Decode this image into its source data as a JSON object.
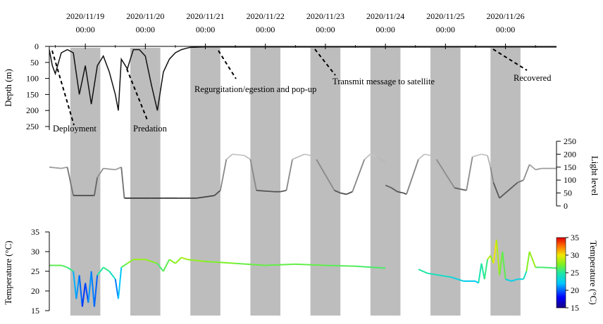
{
  "chart_data": [
    {
      "type": "line",
      "panel": "depth",
      "ylabel": "Depth (m)",
      "ylim": [
        0,
        250
      ],
      "y_ticks": [
        0,
        50,
        100,
        150,
        200,
        250
      ],
      "y_inverted": true,
      "x_ticks": [
        {
          "date": "2020/11/19",
          "time": "00:00"
        },
        {
          "date": "2020/11/20",
          "time": "00:00"
        },
        {
          "date": "2020/11/21",
          "time": "00:00"
        },
        {
          "date": "2020/11/22",
          "time": "00:00"
        },
        {
          "date": "2020/11/23",
          "time": "00:00"
        },
        {
          "date": "2020/11/24",
          "time": "00:00"
        },
        {
          "date": "2020/11/25",
          "time": "00:00"
        },
        {
          "date": "2020/11/26",
          "time": "00:00"
        }
      ],
      "x_range_days": [
        18.4,
        26.85
      ],
      "night_shading_days": [
        [
          18.75,
          19.25
        ],
        [
          19.75,
          20.25
        ],
        [
          20.75,
          21.25
        ],
        [
          21.75,
          22.25
        ],
        [
          22.75,
          23.25
        ],
        [
          23.75,
          24.25
        ],
        [
          24.75,
          25.25
        ],
        [
          25.75,
          26.25
        ]
      ],
      "series": [
        {
          "x_days": [
            18.4,
            18.45,
            18.5,
            18.6,
            18.7,
            18.8,
            18.9,
            19.0,
            19.1,
            19.2,
            19.3,
            19.4,
            19.5,
            19.55,
            19.6,
            19.7,
            19.8,
            19.9,
            20.0,
            20.1,
            20.2,
            20.3,
            20.4,
            20.5,
            20.6,
            20.7,
            20.75,
            21.0,
            22.0,
            23.0,
            24.0,
            25.0,
            26.0,
            26.85
          ],
          "values": [
            10,
            60,
            85,
            20,
            10,
            20,
            150,
            60,
            180,
            60,
            30,
            80,
            150,
            200,
            40,
            70,
            10,
            10,
            30,
            120,
            200,
            80,
            40,
            20,
            10,
            5,
            3,
            2,
            2,
            2,
            2,
            2,
            2,
            2
          ]
        }
      ],
      "annotations": [
        "Deployment",
        "Predation",
        "Regurgitation/egestion and pop-up",
        "Transmit message to satellite",
        "Recovered"
      ]
    },
    {
      "type": "line",
      "panel": "light",
      "ylabel": "Light level",
      "ylim": [
        0,
        250
      ],
      "y_ticks": [
        0,
        50,
        100,
        150,
        200,
        250
      ],
      "series": [
        {
          "x_days": [
            18.4,
            18.6,
            18.7,
            18.8,
            19.15,
            19.2,
            19.3,
            19.5,
            19.6,
            19.65,
            20.1,
            20.3,
            20.55,
            20.7,
            20.75,
            20.85,
            21.15,
            21.25,
            21.35,
            21.45,
            21.65,
            21.75,
            21.85,
            22.15,
            22.25,
            22.35,
            22.45,
            22.65,
            22.75,
            22.85,
            23.15,
            23.25,
            23.35,
            23.45,
            23.65,
            23.75,
            23.85,
            24.0
          ],
          "values": [
            150,
            145,
            150,
            40,
            40,
            110,
            145,
            140,
            150,
            30,
            30,
            30,
            30,
            30,
            30,
            30,
            40,
            60,
            180,
            200,
            195,
            180,
            60,
            55,
            55,
            60,
            180,
            200,
            195,
            180,
            60,
            50,
            45,
            55,
            180,
            200,
            190,
            170
          ]
        },
        {
          "x_days": [
            24.0,
            24.1,
            24.2,
            24.3,
            24.35,
            24.55,
            24.65,
            24.75,
            24.85,
            25.15,
            25.25,
            25.35,
            25.45,
            25.6,
            25.7,
            25.75,
            25.8,
            25.9,
            26.2,
            26.3,
            26.4,
            26.5,
            26.6,
            26.85
          ],
          "values": [
            80,
            70,
            55,
            50,
            45,
            180,
            200,
            195,
            180,
            70,
            65,
            60,
            190,
            200,
            195,
            150,
            90,
            30,
            90,
            100,
            160,
            140,
            145,
            145
          ]
        }
      ]
    },
    {
      "type": "line",
      "panel": "temperature",
      "ylabel": "Temperature (°C)",
      "ylim": [
        15,
        35
      ],
      "y_ticks": [
        15,
        20,
        25,
        30,
        35
      ],
      "colorbar": {
        "label": "Temperature (°C)",
        "range": [
          15,
          35
        ],
        "ticks": [
          15,
          20,
          25,
          30,
          35
        ]
      },
      "series": [
        {
          "x_days": [
            18.4,
            18.6,
            18.7,
            18.8,
            18.85,
            18.9,
            18.95,
            19.0,
            19.05,
            19.1,
            19.15,
            19.2,
            19.3,
            19.4,
            19.5,
            19.55,
            19.6,
            19.7,
            19.8,
            19.9,
            20.0,
            20.1,
            20.2,
            20.3,
            20.4,
            20.5,
            20.6,
            20.7,
            21.0,
            21.5,
            22.0,
            22.5,
            23.0,
            23.5,
            24.0
          ],
          "values": [
            26.5,
            26.5,
            26,
            25,
            18,
            24,
            16,
            22,
            17,
            25,
            16,
            24,
            26,
            25,
            23,
            18,
            26,
            27,
            28,
            28,
            28,
            27.5,
            27,
            25,
            28,
            27,
            28.5,
            28,
            27.5,
            27,
            26.5,
            26.8,
            26.5,
            26.3,
            25.8
          ]
        },
        {
          "x_days": [
            24.55,
            24.7,
            24.9,
            25.1,
            25.3,
            25.5,
            25.55,
            25.6,
            25.65,
            25.7,
            25.75,
            25.8,
            25.85,
            25.9,
            25.95,
            26.0,
            26.1,
            26.2,
            26.3,
            26.35,
            26.4,
            26.5,
            26.6,
            26.85
          ],
          "values": [
            25.5,
            24.5,
            24,
            23.5,
            22.5,
            22.5,
            22,
            27,
            23,
            28,
            29,
            27,
            33,
            24,
            30,
            23,
            22.5,
            23,
            23,
            25,
            30,
            26,
            26,
            25.8
          ]
        }
      ]
    }
  ]
}
